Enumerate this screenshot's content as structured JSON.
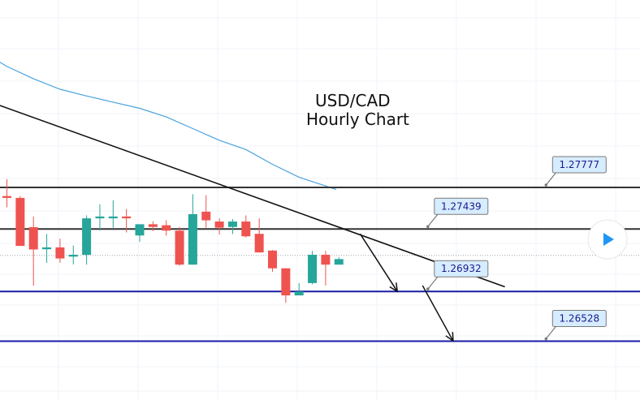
{
  "chart_data": {
    "type": "candlestick",
    "title_line1": "USD/CAD",
    "title_line2": "Hourly Chart",
    "ylim": [
      1.2605,
      1.293
    ],
    "grid": true,
    "colors": {
      "up": "#26a69a",
      "down": "#ef5350",
      "moving_average": "#4aa3df",
      "resistance": "#333333",
      "support": "#1a1aa8",
      "trendline": "#111111",
      "callout_fill": "#d6ecff",
      "callout_border": "#7a7a7a"
    },
    "candles": [
      {
        "o": 1.27707,
        "h": 1.27844,
        "l": 1.27616,
        "c": 1.27692
      },
      {
        "o": 1.27692,
        "h": 1.27707,
        "l": 1.27302,
        "c": 1.27302
      },
      {
        "o": 1.27454,
        "h": 1.27541,
        "l": 1.26979,
        "c": 1.27273
      },
      {
        "o": 1.27275,
        "h": 1.27398,
        "l": 1.27165,
        "c": 1.2729
      },
      {
        "o": 1.2729,
        "h": 1.27361,
        "l": 1.27165,
        "c": 1.272
      },
      {
        "o": 1.27215,
        "h": 1.27306,
        "l": 1.27152,
        "c": 1.2723
      },
      {
        "o": 1.2723,
        "h": 1.2755,
        "l": 1.2715,
        "c": 1.27526
      },
      {
        "o": 1.27526,
        "h": 1.2764,
        "l": 1.27426,
        "c": 1.27541
      },
      {
        "o": 1.27526,
        "h": 1.27673,
        "l": 1.2745,
        "c": 1.27541
      },
      {
        "o": 1.27541,
        "h": 1.27602,
        "l": 1.27411,
        "c": 1.27526
      },
      {
        "o": 1.27387,
        "h": 1.2747,
        "l": 1.27335,
        "c": 1.27478
      },
      {
        "o": 1.27478,
        "h": 1.27502,
        "l": 1.27422,
        "c": 1.27456
      },
      {
        "o": 1.2747,
        "h": 1.27511,
        "l": 1.27385,
        "c": 1.27426
      },
      {
        "o": 1.27426,
        "h": 1.27456,
        "l": 1.2714,
        "c": 1.2715
      },
      {
        "o": 1.2715,
        "h": 1.27722,
        "l": 1.2715,
        "c": 1.2756
      },
      {
        "o": 1.2758,
        "h": 1.27714,
        "l": 1.2745,
        "c": 1.2751
      },
      {
        "o": 1.275,
        "h": 1.27526,
        "l": 1.27395,
        "c": 1.2745
      },
      {
        "o": 1.27456,
        "h": 1.2752,
        "l": 1.27398,
        "c": 1.275
      },
      {
        "o": 1.275,
        "h": 1.2755,
        "l": 1.2737,
        "c": 1.2738
      },
      {
        "o": 1.274,
        "h": 1.27526,
        "l": 1.27249,
        "c": 1.27249
      },
      {
        "o": 1.27264,
        "h": 1.27269,
        "l": 1.27092,
        "c": 1.2712
      },
      {
        "o": 1.2712,
        "h": 1.2712,
        "l": 1.26839,
        "c": 1.269
      },
      {
        "o": 1.269,
        "h": 1.27,
        "l": 1.2691,
        "c": 1.26931
      },
      {
        "o": 1.27,
        "h": 1.27261,
        "l": 1.2699,
        "c": 1.2723
      },
      {
        "o": 1.2723,
        "h": 1.27261,
        "l": 1.2698,
        "c": 1.2715
      },
      {
        "o": 1.2715,
        "h": 1.2721,
        "l": 1.2715,
        "c": 1.27195
      }
    ],
    "moving_average": [
      {
        "i": -2.0,
        "v": 1.2889
      },
      {
        "i": 0.0,
        "v": 1.2876
      },
      {
        "i": 2.0,
        "v": 1.2866
      },
      {
        "i": 4.0,
        "v": 1.28575
      },
      {
        "i": 6.0,
        "v": 1.2852
      },
      {
        "i": 8.0,
        "v": 1.2847
      },
      {
        "i": 10.0,
        "v": 1.2842
      },
      {
        "i": 12.0,
        "v": 1.2835
      },
      {
        "i": 14.0,
        "v": 1.28255
      },
      {
        "i": 16.0,
        "v": 1.2816
      },
      {
        "i": 18.0,
        "v": 1.28085
      },
      {
        "i": 20.0,
        "v": 1.27965
      },
      {
        "i": 22.0,
        "v": 1.2786
      },
      {
        "i": 24.8,
        "v": 1.2776
      }
    ],
    "trendline": {
      "from": {
        "i": -2.0,
        "v": 1.285
      },
      "to": {
        "i": 37.5,
        "v": 1.2697
      }
    },
    "levels": [
      {
        "value": 1.27777,
        "label": "1.27777",
        "style": "resistance",
        "callout_i": 40.6
      },
      {
        "value": 1.27439,
        "label": "1.27439",
        "style": "resistance",
        "callout_i": 31.7
      },
      {
        "value": 1.26932,
        "label": "1.26932",
        "style": "support",
        "callout_i": 31.7
      },
      {
        "value": 1.26528,
        "label": "1.26528",
        "style": "support",
        "callout_i": 40.6
      }
    ],
    "projection_arrows": [
      {
        "from": {
          "i": 26.6,
          "v": 1.274
        },
        "to": {
          "i": 29.4,
          "v": 1.26932
        }
      },
      {
        "from": {
          "i": 31.3,
          "v": 1.2698
        },
        "to": {
          "i": 33.6,
          "v": 1.2653
        }
      }
    ],
    "reference_line_value": 1.27225
  },
  "ui": {
    "play_button_icon": "play-triangle-icon"
  }
}
